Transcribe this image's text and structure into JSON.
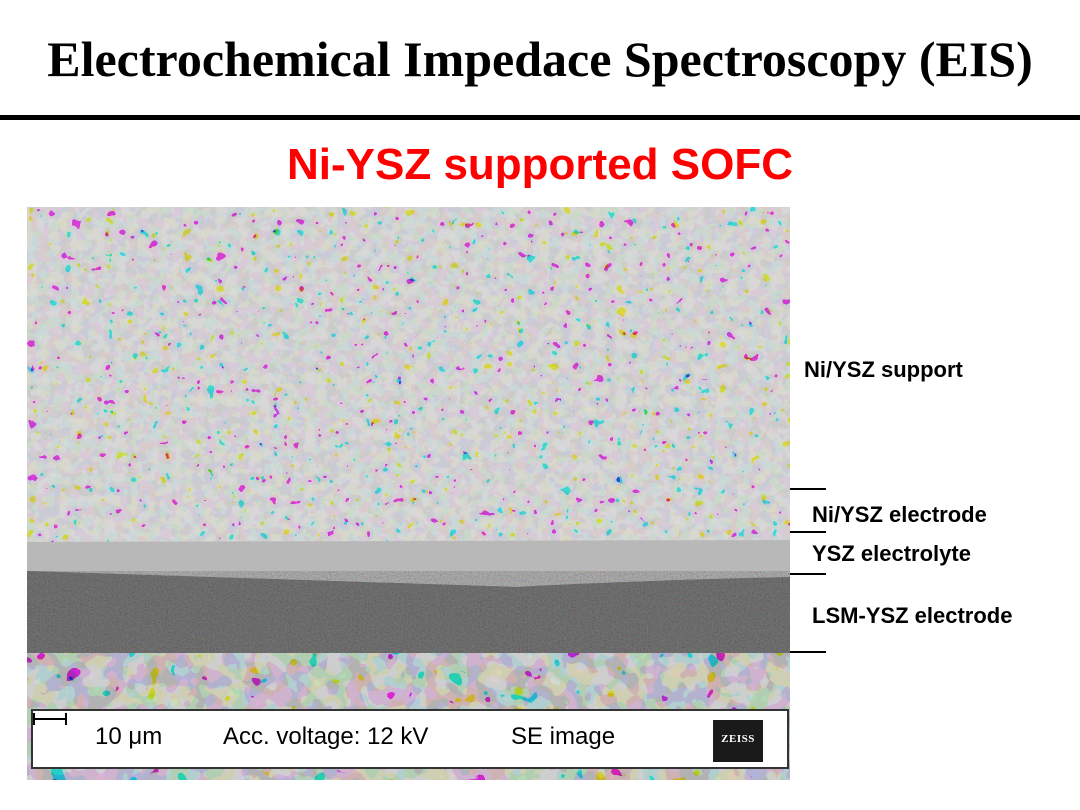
{
  "header": {
    "title": "Electrochemical Impedace Spectroscopy (EIS)",
    "subtitle": "Ni-YSZ supported SOFC"
  },
  "micrograph": {
    "scale_label": "10 μm",
    "voltage_label": "Acc. voltage: 12 kV",
    "mode_label": "SE image",
    "logo_text": "ZEISS"
  },
  "layers": {
    "support": "Ni/YSZ support",
    "electrode": "Ni/YSZ electrode",
    "electrolyte": "YSZ electrolyte",
    "cathode": "LSM-YSZ electrode"
  },
  "colors": {
    "title": "#000000",
    "subtitle": "#ff0000",
    "electrolyte_band": "#b8b8b8"
  }
}
